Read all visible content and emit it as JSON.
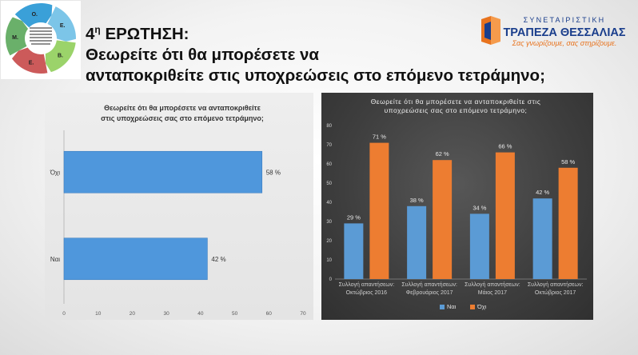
{
  "slide": {
    "question_number": "4",
    "question_sup": "η",
    "question_word": "ΕΡΩΤΗΣΗ:",
    "title_line1": "Θεωρείτε ότι θα μπορέσετε να",
    "title_line2": "ανταποκριθείτε στις υποχρεώσεις στο επόμενο τετράμηνο;"
  },
  "logo_left": {
    "letters": [
      "Ο.",
      "Ε.",
      "Β.",
      "Ε.",
      "Μ."
    ],
    "colors": [
      "#3aa0d8",
      "#7cc5e8",
      "#9bd36a",
      "#cc5a5a",
      "#6ab06a"
    ]
  },
  "logo_right": {
    "brand_top": "ΣΥΝΕΤΑΙΡΙΣΤΙΚΗ",
    "brand_main": "ΤΡΑΠΕΖΑ ΘΕΣΣΑΛΙΑΣ",
    "slogan": "Σας γνωρίζουμε, σας στηρίζουμε.",
    "color_main": "#1a3e8c",
    "color_accent": "#e8731e"
  },
  "chart_data": [
    {
      "type": "bar",
      "orientation": "horizontal",
      "title_line1": "Θεωρείτε ότι θα μπορέσετε να ανταποκριθείτε",
      "title_line2": "στις υποχρεώσεις σας στο επόμενο τετράμηνο;",
      "categories": [
        "Όχι",
        "Ναι"
      ],
      "values": [
        58,
        42
      ],
      "data_labels": [
        "58 %",
        "42 %"
      ],
      "xlim": [
        0,
        70
      ],
      "xticks": [
        "0",
        "10",
        "20",
        "30",
        "40",
        "50",
        "60",
        "70"
      ],
      "bar_color": "#4f97dc",
      "grid": false
    },
    {
      "type": "bar",
      "orientation": "vertical",
      "title_line1": "Θεωρείτε ότι θα μπορέσετε να ανταποκριθείτε στις",
      "title_line2": "υποχρεώσεις σας στο επόμενο τετράμηνο;",
      "categories": [
        [
          "Συλλογή απαντήσεων:",
          "Οκτώβριος 2016"
        ],
        [
          "Συλλογή απαντήσεων:",
          "Φεβρουάριος 2017"
        ],
        [
          "Συλλογή απαντήσεων:",
          "Μάιος 2017"
        ],
        [
          "Συλλογή απαντήσεων:",
          "Οκτώβριος 2017"
        ]
      ],
      "series": [
        {
          "name": "Ναι",
          "values": [
            29,
            38,
            34,
            42
          ],
          "labels": [
            "29 %",
            "38 %",
            "34 %",
            "42 %"
          ],
          "color": "#5b9bd5"
        },
        {
          "name": "Όχι",
          "values": [
            71,
            62,
            66,
            58
          ],
          "labels": [
            "71 %",
            "62 %",
            "66 %",
            "58 %"
          ],
          "color": "#ed7d31"
        }
      ],
      "ylim": [
        0,
        80
      ],
      "yticks": [
        "0",
        "10",
        "20",
        "30",
        "40",
        "50",
        "60",
        "70",
        "80"
      ],
      "legend": "bottom",
      "grid": false
    }
  ]
}
